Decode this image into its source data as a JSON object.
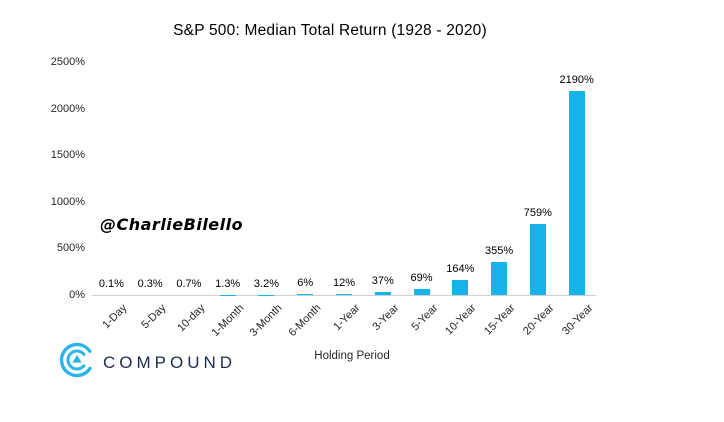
{
  "title": "S&P 500: Median Total Return (1928 - 2020)",
  "watermark": "@CharlieBilello",
  "logo": {
    "text": "COMPOUND",
    "icon": "compound-arcs-triangle-icon",
    "icon_color": "#2ab5e8",
    "text_color": "#1e2c52"
  },
  "chart_data": {
    "type": "bar",
    "title": "S&P 500: Median Total Return (1928 - 2020)",
    "categories": [
      "1-Day",
      "5-Day",
      "10-day",
      "1-Month",
      "3-Month",
      "6-Month",
      "1-Year",
      "3-Year",
      "5-Year",
      "10-Year",
      "15-Year",
      "20-Year",
      "30-Year"
    ],
    "values": [
      0.1,
      0.3,
      0.7,
      1.3,
      3.2,
      6,
      12,
      37,
      69,
      164,
      355,
      759,
      2190
    ],
    "value_labels": [
      "0.1%",
      "0.3%",
      "0.7%",
      "1.3%",
      "3.2%",
      "6%",
      "12%",
      "37%",
      "69%",
      "164%",
      "355%",
      "759%",
      "2190%"
    ],
    "xlabel": "Holding Period",
    "ylabel": "",
    "ylim": [
      0,
      2500
    ],
    "yticks": [
      0,
      500,
      1000,
      1500,
      2000,
      2500
    ],
    "ytick_labels": [
      "0%",
      "500%",
      "1000%",
      "1500%",
      "2000%",
      "2500%"
    ],
    "bar_color": "#14b4e8",
    "axis_line_color": "#d0d0d0",
    "grid": false,
    "legend": false
  }
}
